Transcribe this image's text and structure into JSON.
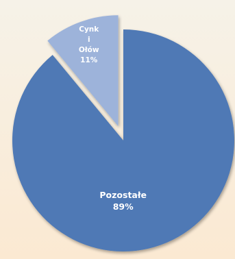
{
  "chart_data": {
    "type": "pie",
    "title": "",
    "slices": [
      {
        "label": "Pozostałe",
        "value": 89,
        "percent_label": "89%",
        "color": "#4f79b5",
        "exploded": false
      },
      {
        "label": "Cynk i Ołów",
        "label_lines": [
          "Cynk",
          "i",
          "Ołów"
        ],
        "value": 11,
        "percent_label": "11%",
        "color": "#9db3da",
        "exploded": true
      }
    ],
    "legend": "none",
    "background": {
      "top": "#f6f2e8",
      "bottom": "#fbe9d2"
    }
  }
}
